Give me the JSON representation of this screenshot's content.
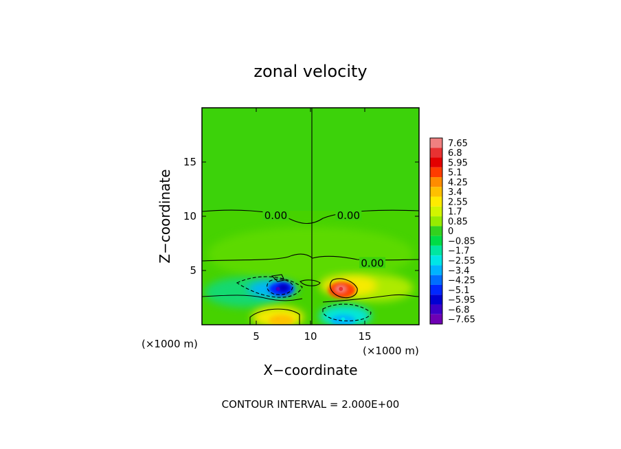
{
  "chart_data": {
    "type": "heatmap",
    "title": "zonal velocity",
    "xlabel": "X−coordinate",
    "ylabel": "Z−coordinate",
    "x_unit_label": "(×1000 m)",
    "x_unit_label_right": "(×1000 m)",
    "xlim": [
      0,
      20
    ],
    "ylim": [
      0,
      20
    ],
    "x_ticks": [
      5,
      10,
      15
    ],
    "x_tick_labels": [
      "5",
      "10",
      "15"
    ],
    "y_ticks": [
      5,
      10,
      15
    ],
    "y_tick_labels": [
      "5",
      "10",
      "15"
    ],
    "footer": "CONTOUR INTERVAL = 2.000E+00",
    "contour_labels": [
      {
        "text": "0.00",
        "x": 6.8,
        "y": 10.0
      },
      {
        "text": "0.00",
        "x": 13.5,
        "y": 10.0
      },
      {
        "text": "0.00",
        "x": 15.7,
        "y": 5.6
      }
    ],
    "colorbar": {
      "labels": [
        "7.65",
        "6.8",
        "5.95",
        "5.1",
        "4.25",
        "3.4",
        "2.55",
        "1.7",
        "0.85",
        "0",
        "−0.85",
        "−1.7",
        "−2.55",
        "−3.4",
        "−4.25",
        "−5.1",
        "−5.95",
        "−6.8",
        "−7.65"
      ],
      "colors": [
        "#f08080",
        "#e83232",
        "#e30000",
        "#ff3c00",
        "#ff8c00",
        "#ffc000",
        "#ffeb00",
        "#d2f500",
        "#96eb00",
        "#32d21e",
        "#00dc46",
        "#00e6a0",
        "#00e6e6",
        "#00b4ff",
        "#006eff",
        "#0028ff",
        "#0000d2",
        "#3c00c8",
        "#6e00b4"
      ],
      "range": [
        -7.65,
        7.65
      ]
    },
    "features": [
      {
        "kind": "positive jet",
        "x": 12.8,
        "z": 3.3,
        "peak": 7.0
      },
      {
        "kind": "negative jet",
        "x": 7.0,
        "z": 3.3,
        "peak": -6.5
      },
      {
        "kind": "positive surface",
        "x": 7.0,
        "z": 0.5,
        "peak": 3.0
      },
      {
        "kind": "negative surface",
        "x": 13.0,
        "z": 0.5,
        "peak": -2.5
      }
    ]
  }
}
